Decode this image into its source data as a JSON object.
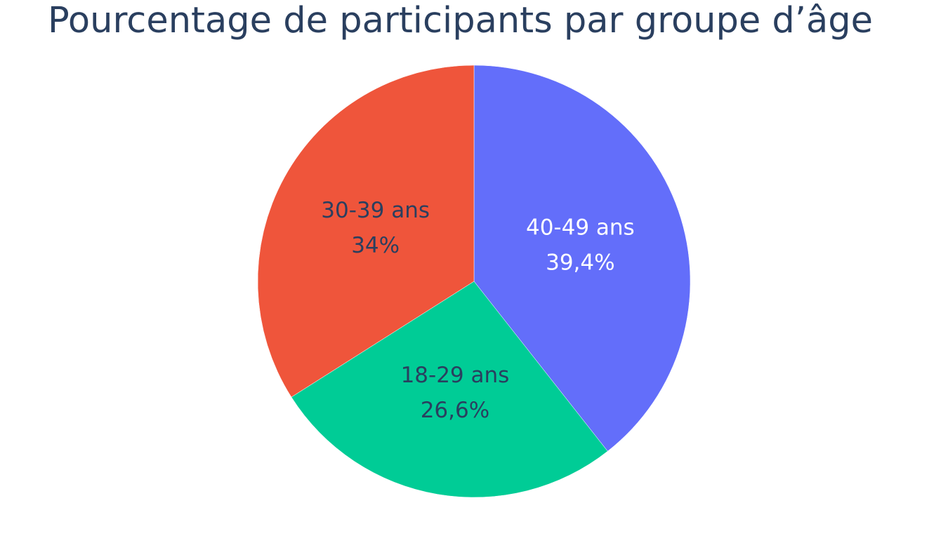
{
  "chart_data": {
    "type": "pie",
    "title": "Pourcentage de participants par groupe d’âge",
    "slices": [
      {
        "label": "40-49 ans",
        "value": 39.4,
        "value_label": "39,4%",
        "color": "#636efa",
        "text_color": "#ffffff"
      },
      {
        "label": "18-29 ans",
        "value": 26.6,
        "value_label": "26,6%",
        "color": "#00cc96",
        "text_color": "#2a3f5f"
      },
      {
        "label": "30-39 ans",
        "value": 34.0,
        "value_label": "34%",
        "color": "#ef553b",
        "text_color": "#2a3f5f"
      }
    ],
    "direction": "clockwise",
    "start_angle": "top",
    "legend": "none"
  }
}
